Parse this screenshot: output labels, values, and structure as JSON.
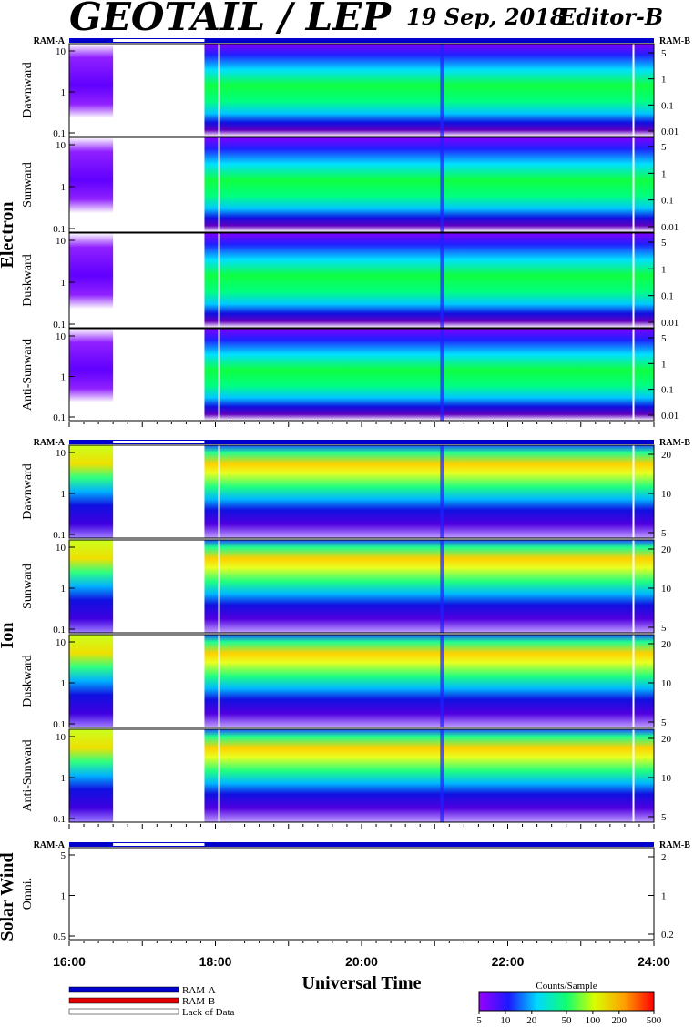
{
  "header": {
    "title": "GEOTAIL / LEP",
    "date": "19 Sep, 2018",
    "editor": "Editor-B"
  },
  "chart_data": {
    "type": "heatmap",
    "xlabel": "Universal Time",
    "x_ticks": [
      "16:00",
      "18:00",
      "20:00",
      "22:00",
      "24:00"
    ],
    "x_range_hours": [
      16,
      24
    ],
    "data_gaps_hours": [
      [
        16.6,
        17.85
      ]
    ],
    "ram_labels": {
      "left": "RAM-A",
      "right": "RAM-B"
    },
    "groups": [
      {
        "name": "Electron",
        "panels": [
          {
            "label": "Dawnward",
            "y_ticks": [
              "10",
              "1",
              "0.1"
            ],
            "right_ticks": [
              "5",
              "1",
              "0.1",
              "0.01"
            ]
          },
          {
            "label": "Sunward",
            "y_ticks": [
              "10",
              "1",
              "0.1"
            ],
            "right_ticks": [
              "5",
              "1",
              "0.1",
              "0.01"
            ]
          },
          {
            "label": "Duskward",
            "y_ticks": [
              "10",
              "1",
              "0.1"
            ],
            "right_ticks": [
              "5",
              "1",
              "0.1",
              "0.01"
            ]
          },
          {
            "label": "Anti-Sunward",
            "y_ticks": [
              "10",
              "1",
              "0.1"
            ],
            "right_ticks": [
              "5",
              "1",
              "0.1",
              "0.01"
            ]
          }
        ]
      },
      {
        "name": "Ion",
        "panels": [
          {
            "label": "Dawnward",
            "y_ticks": [
              "10",
              "1",
              "0.1"
            ],
            "right_ticks": [
              "20",
              "10",
              "5"
            ]
          },
          {
            "label": "Sunward",
            "y_ticks": [
              "10",
              "1",
              "0.1"
            ],
            "right_ticks": [
              "20",
              "10",
              "5"
            ]
          },
          {
            "label": "Duskward",
            "y_ticks": [
              "10",
              "1",
              "0.1"
            ],
            "right_ticks": [
              "20",
              "10",
              "5"
            ]
          },
          {
            "label": "Anti-Sunward",
            "y_ticks": [
              "10",
              "1",
              "0.1"
            ],
            "right_ticks": [
              "20",
              "10",
              "5"
            ]
          }
        ]
      },
      {
        "name": "Solar Wind",
        "panels": [
          {
            "label": "Omni.",
            "y_ticks": [
              "5",
              "1",
              "0.5"
            ],
            "right_ticks": [
              "2",
              "1",
              "0.2"
            ]
          }
        ]
      }
    ],
    "legend": {
      "ram_a": "RAM-A",
      "ram_b": "RAM-B",
      "lack": "Lack of Data",
      "colors": {
        "ram_a": "#0000cc",
        "ram_b": "#e00000",
        "lack": "#ffffff"
      }
    },
    "colorbar": {
      "title": "Counts/Sample",
      "ticks": [
        "5",
        "10",
        "20",
        "50",
        "100",
        "200",
        "500"
      ],
      "values": [
        5,
        10,
        20,
        50,
        100,
        200,
        500
      ],
      "scale": "log"
    }
  }
}
